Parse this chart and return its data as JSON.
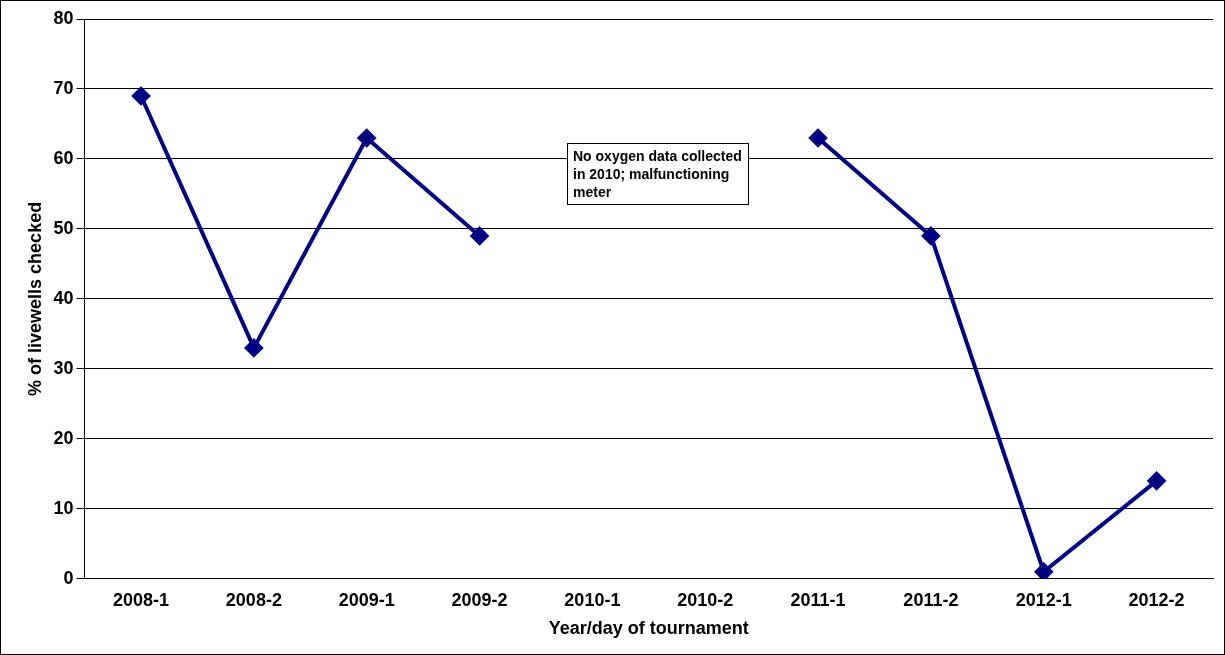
{
  "chart_data": {
    "type": "line",
    "xlabel": "Year/day of tournament",
    "ylabel": "% of livewells checked",
    "categories": [
      "2008-1",
      "2008-2",
      "2009-1",
      "2009-2",
      "2010-1",
      "2010-2",
      "2011-1",
      "2011-2",
      "2012-1",
      "2012-2"
    ],
    "series": [
      {
        "color": "#000080",
        "values": [
          69,
          33,
          63,
          49,
          null,
          null,
          63,
          49,
          1,
          14
        ]
      }
    ],
    "ylim": [
      0,
      80
    ],
    "yticks": [
      0,
      10,
      20,
      30,
      40,
      50,
      60,
      70,
      80
    ],
    "grid": "y",
    "legend": false,
    "marker": "diamond",
    "line_style": "solid",
    "annotations": [
      "No oxygen data collected in 2010; malfunctioning meter"
    ]
  }
}
